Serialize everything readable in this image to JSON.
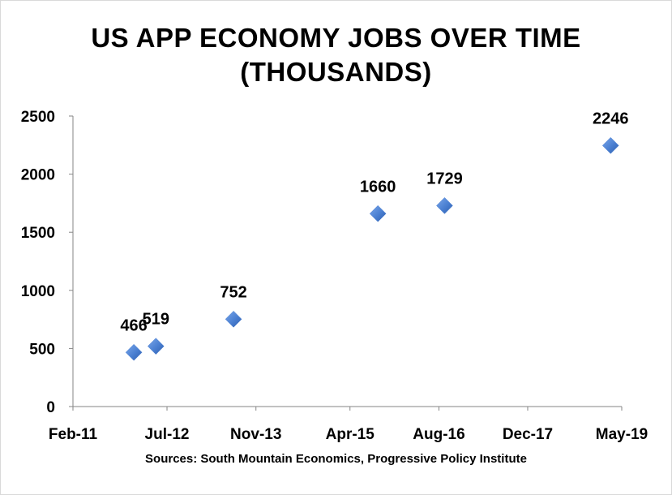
{
  "chart_data": {
    "type": "scatter",
    "title_lines": [
      "US APP ECONOMY JOBS OVER TIME",
      "(THOUSANDS)"
    ],
    "source": "Sources: South Mountain Economics, Progressive Policy Institute",
    "x_axis": {
      "type": "date",
      "min": "2011-02-01",
      "max": "2019-05-01",
      "tick_labels": [
        "Feb-11",
        "Jul-12",
        "Nov-13",
        "Apr-15",
        "Aug-16",
        "Dec-17",
        "May-19"
      ],
      "tick_dates": [
        "2011-02-01",
        "2012-07-01",
        "2013-11-01",
        "2015-04-01",
        "2016-08-01",
        "2017-12-01",
        "2019-05-01"
      ]
    },
    "y_axis": {
      "min": 0,
      "max": 2500,
      "tick_labels": [
        "0",
        "500",
        "1000",
        "1500",
        "2000",
        "2500"
      ],
      "tick_values": [
        0,
        500,
        1000,
        1500,
        2000,
        2500
      ]
    },
    "grid": false,
    "marker": "diamond",
    "marker_color": "#4a7fd1",
    "points": [
      {
        "x": "2012-01-01",
        "y": 466,
        "label": "466"
      },
      {
        "x": "2012-05-01",
        "y": 519,
        "label": "519"
      },
      {
        "x": "2013-07-01",
        "y": 752,
        "label": "752"
      },
      {
        "x": "2015-09-01",
        "y": 1660,
        "label": "1660"
      },
      {
        "x": "2016-09-01",
        "y": 1729,
        "label": "1729"
      },
      {
        "x": "2019-03-01",
        "y": 2246,
        "label": "2246"
      }
    ]
  }
}
